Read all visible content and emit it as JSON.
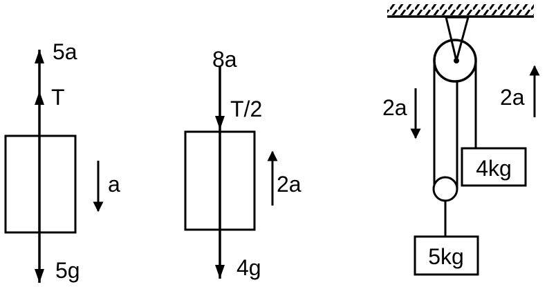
{
  "free_body_1": {
    "label_upper_accel": "5a",
    "label_tension": "T",
    "label_accel": "a",
    "label_weight": "5g"
  },
  "free_body_2": {
    "label_upper_accel": "8a",
    "label_tension": "T/2",
    "label_accel": "2a",
    "label_weight": "4g"
  },
  "pulley_system": {
    "label_left_accel": "2a",
    "label_right_accel": "2a",
    "label_small_block": "4kg",
    "label_large_block": "5kg"
  }
}
